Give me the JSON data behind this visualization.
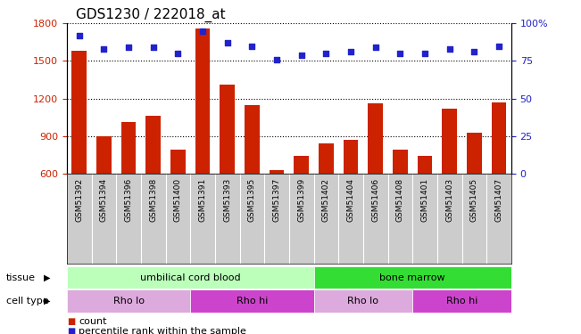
{
  "title": "GDS1230 / 222018_at",
  "samples": [
    "GSM51392",
    "GSM51394",
    "GSM51396",
    "GSM51398",
    "GSM51400",
    "GSM51391",
    "GSM51393",
    "GSM51395",
    "GSM51397",
    "GSM51399",
    "GSM51402",
    "GSM51404",
    "GSM51406",
    "GSM51408",
    "GSM51401",
    "GSM51403",
    "GSM51405",
    "GSM51407"
  ],
  "bar_values": [
    1580,
    900,
    1010,
    1060,
    790,
    1760,
    1310,
    1150,
    625,
    745,
    840,
    870,
    1160,
    790,
    740,
    1120,
    930,
    1170
  ],
  "dot_values_pct": [
    92,
    83,
    84,
    84,
    80,
    95,
    87,
    85,
    76,
    79,
    80,
    81,
    84,
    80,
    80,
    83,
    81,
    85
  ],
  "ylim_left": [
    600,
    1800
  ],
  "ylim_right": [
    0,
    100
  ],
  "yticks_left": [
    600,
    900,
    1200,
    1500,
    1800
  ],
  "yticks_right": [
    0,
    25,
    50,
    75,
    100
  ],
  "bar_color": "#cc2200",
  "dot_color": "#2222cc",
  "tissue_groups": [
    {
      "label": "umbilical cord blood",
      "start": 0,
      "end": 10,
      "color": "#bbffbb"
    },
    {
      "label": "bone marrow",
      "start": 10,
      "end": 18,
      "color": "#33dd33"
    }
  ],
  "cell_type_groups": [
    {
      "label": "Rho lo",
      "start": 0,
      "end": 5,
      "color": "#ddaadd"
    },
    {
      "label": "Rho hi",
      "start": 5,
      "end": 10,
      "color": "#cc44cc"
    },
    {
      "label": "Rho lo",
      "start": 10,
      "end": 14,
      "color": "#ddaadd"
    },
    {
      "label": "Rho hi",
      "start": 14,
      "end": 18,
      "color": "#cc44cc"
    }
  ],
  "legend_count_color": "#cc2200",
  "legend_pct_color": "#2222cc",
  "tick_label_color_left": "#cc2200",
  "tick_label_color_right": "#2222cc",
  "xtick_bg_color": "#cccccc",
  "title_fontsize": 11
}
